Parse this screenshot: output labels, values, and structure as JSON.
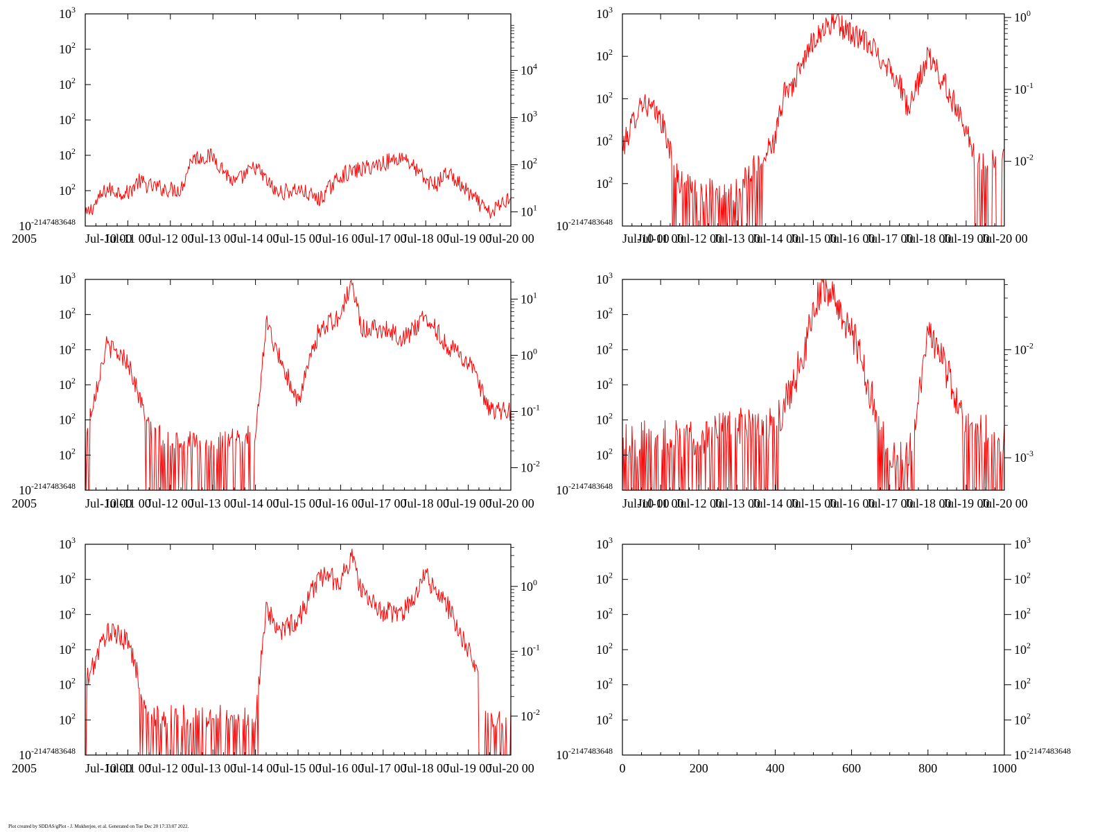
{
  "footer": "Plot created by SDDAS/gPlot - J. Mukherjee, et al.  Generated on Tue Dec 20 17:33:07 2022.",
  "series_color": "#ff0000",
  "chart_data": [
    {
      "type": "line",
      "year_label": "2005",
      "x_ticks": [
        "Jul-10 00",
        "Jul-11 00",
        "Jul-12 00",
        "Jul-13 00",
        "Jul-14 00",
        "Jul-15 00",
        "Jul-16 00",
        "Jul-17 00",
        "Jul-18 00",
        "Jul-19 00",
        "Jul-20 00"
      ],
      "y_left_ticks": [
        "10^-2147483648",
        "10^2",
        "10^2",
        "10^2",
        "10^2",
        "10^2",
        "10^3"
      ],
      "y_right_ticks": [
        "10^1",
        "10^2",
        "10^3",
        "10^4"
      ],
      "y_right_log_range": [
        0.7,
        5.2
      ],
      "series": [
        {
          "x": [
            "Jul-10 00",
            "Jul-10 12",
            "Jul-11 00",
            "Jul-11 06",
            "Jul-11 12",
            "Jul-12 00",
            "Jul-12 06",
            "Jul-12 12",
            "Jul-13 00",
            "Jul-13 12",
            "Jul-14 00",
            "Jul-14 12",
            "Jul-15 00",
            "Jul-15 12",
            "Jul-16 00",
            "Jul-16 12",
            "Jul-17 00",
            "Jul-17 12",
            "Jul-18 00",
            "Jul-18 06",
            "Jul-18 12",
            "Jul-19 00",
            "Jul-19 12",
            "Jul-20 00"
          ],
          "values": [
            8,
            30,
            25,
            45,
            35,
            30,
            30,
            140,
            150,
            40,
            90,
            25,
            30,
            18,
            60,
            80,
            110,
            150,
            45,
            38,
            70,
            25,
            9,
            22
          ]
        }
      ]
    },
    {
      "type": "line",
      "year_label": "",
      "x_ticks": [
        "Jul-10 00",
        "Jul-11 00",
        "Jul-12 00",
        "Jul-13 00",
        "Jul-14 00",
        "Jul-15 00",
        "Jul-16 00",
        "Jul-17 00",
        "Jul-18 00",
        "Jul-19 00",
        "Jul-20 00"
      ],
      "y_left_ticks": [
        "10^-2147483648",
        "10^2",
        "10^2",
        "10^2",
        "10^2",
        "10^3"
      ],
      "y_right_ticks": [
        "10^-2",
        "10^-1",
        "10^0"
      ],
      "y_right_log_range": [
        -2.9,
        0.05
      ],
      "series": [
        {
          "x": [
            "Jul-10 00",
            "Jul-10 12",
            "Jul-11 00",
            "Jul-11 12",
            "Jul-12 00",
            "Jul-13 00",
            "Jul-14 00",
            "Jul-14 06",
            "Jul-14 12",
            "Jul-15 00",
            "Jul-15 12",
            "Jul-16 00",
            "Jul-16 12",
            "Jul-17 00",
            "Jul-17 06",
            "Jul-17 12",
            "Jul-18 00",
            "Jul-18 12",
            "Jul-19 00",
            "Jul-19 06",
            "Jul-20 00"
          ],
          "values": [
            0.015,
            0.07,
            0.04,
            0.005,
            0.004,
            0.004,
            0.02,
            0.1,
            0.12,
            0.5,
            0.9,
            0.6,
            0.4,
            0.2,
            0.12,
            0.05,
            0.3,
            0.1,
            0.03,
            0.01,
            0.01
          ]
        }
      ]
    },
    {
      "type": "line",
      "year_label": "2005",
      "x_ticks": [
        "Jul-10 00",
        "Jul-11 00",
        "Jul-12 00",
        "Jul-13 00",
        "Jul-14 00",
        "Jul-15 00",
        "Jul-16 00",
        "Jul-17 00",
        "Jul-18 00",
        "Jul-19 00",
        "Jul-20 00"
      ],
      "y_left_ticks": [
        "10^-2147483648",
        "10^2",
        "10^2",
        "10^2",
        "10^2",
        "10^2",
        "10^3"
      ],
      "y_right_ticks": [
        "10^-2",
        "10^-1",
        "10^0",
        "10^1"
      ],
      "y_right_log_range": [
        -2.4,
        1.35
      ],
      "series": [
        {
          "x": [
            "Jul-10 00",
            "Jul-10 12",
            "Jul-11 00",
            "Jul-11 12",
            "Jul-12 00",
            "Jul-13 00",
            "Jul-14 00",
            "Jul-14 06",
            "Jul-14 12",
            "Jul-15 00",
            "Jul-15 12",
            "Jul-16 00",
            "Jul-16 06",
            "Jul-16 12",
            "Jul-17 00",
            "Jul-17 12",
            "Jul-18 00",
            "Jul-18 12",
            "Jul-19 00",
            "Jul-19 12",
            "Jul-20 00"
          ],
          "values": [
            0.04,
            1.5,
            0.8,
            0.05,
            0.03,
            0.03,
            0.04,
            4,
            1.2,
            0.15,
            3,
            5,
            20,
            3,
            3,
            2,
            5,
            1.5,
            0.8,
            0.1,
            0.1
          ]
        }
      ]
    },
    {
      "type": "line",
      "year_label": "",
      "x_ticks": [
        "Jul-10 00",
        "Jul-11 00",
        "Jul-12 00",
        "Jul-13 00",
        "Jul-14 00",
        "Jul-15 00",
        "Jul-16 00",
        "Jul-17 00",
        "Jul-18 00",
        "Jul-19 00",
        "Jul-20 00"
      ],
      "y_left_ticks": [
        "10^-2147483648",
        "10^2",
        "10^2",
        "10^2",
        "10^2",
        "10^2",
        "10^3"
      ],
      "y_right_ticks": [
        "10^-3",
        "10^-2"
      ],
      "y_right_log_range": [
        -3.3,
        -1.35
      ],
      "series": [
        {
          "x": [
            "Jul-10 00",
            "Jul-11 00",
            "Jul-12 00",
            "Jul-13 00",
            "Jul-14 00",
            "Jul-14 12",
            "Jul-15 00",
            "Jul-15 06",
            "Jul-15 12",
            "Jul-16 00",
            "Jul-16 12",
            "Jul-17 00",
            "Jul-17 12",
            "Jul-18 00",
            "Jul-18 12",
            "Jul-19 00",
            "Jul-20 00"
          ],
          "values": [
            0.0015,
            0.0015,
            0.0015,
            0.002,
            0.002,
            0.005,
            0.02,
            0.045,
            0.03,
            0.015,
            0.004,
            0.001,
            0.001,
            0.015,
            0.006,
            0.002,
            0.0015
          ]
        }
      ]
    },
    {
      "type": "line",
      "year_label": "2005",
      "x_ticks": [
        "Jul-10 00",
        "Jul-11 00",
        "Jul-12 00",
        "Jul-13 00",
        "Jul-14 00",
        "Jul-15 00",
        "Jul-16 00",
        "Jul-17 00",
        "Jul-18 00",
        "Jul-19 00",
        "Jul-20 00"
      ],
      "y_left_ticks": [
        "10^-2147483648",
        "10^2",
        "10^2",
        "10^2",
        "10^2",
        "10^2",
        "10^3"
      ],
      "y_right_ticks": [
        "10^-2",
        "10^-1",
        "10^0"
      ],
      "y_right_log_range": [
        -2.6,
        0.65
      ],
      "series": [
        {
          "x": [
            "Jul-10 00",
            "Jul-10 12",
            "Jul-11 00",
            "Jul-11 12",
            "Jul-12 00",
            "Jul-13 00",
            "Jul-14 00",
            "Jul-14 06",
            "Jul-14 12",
            "Jul-15 00",
            "Jul-15 12",
            "Jul-16 00",
            "Jul-16 06",
            "Jul-16 12",
            "Jul-17 00",
            "Jul-17 12",
            "Jul-18 00",
            "Jul-18 12",
            "Jul-19 00",
            "Jul-19 12",
            "Jul-20 00"
          ],
          "values": [
            0.03,
            0.2,
            0.15,
            0.01,
            0.01,
            0.01,
            0.01,
            0.5,
            0.2,
            0.3,
            1.5,
            1.2,
            3,
            0.8,
            0.4,
            0.4,
            1.5,
            0.5,
            0.1,
            0.01,
            0.01
          ]
        }
      ]
    },
    {
      "type": "line",
      "year_label": "",
      "x_ticks": [
        "0",
        "200",
        "400",
        "600",
        "800",
        "1000"
      ],
      "y_left_ticks": [
        "10^-2147483648",
        "10^2",
        "10^2",
        "10^2",
        "10^2",
        "10^2",
        "10^3"
      ],
      "y_right_ticks": [
        "10^-2147483648",
        "10^2",
        "10^2",
        "10^2",
        "10^2",
        "10^2",
        "10^3"
      ],
      "y_right_log_range": [
        0,
        1
      ],
      "series": []
    }
  ]
}
